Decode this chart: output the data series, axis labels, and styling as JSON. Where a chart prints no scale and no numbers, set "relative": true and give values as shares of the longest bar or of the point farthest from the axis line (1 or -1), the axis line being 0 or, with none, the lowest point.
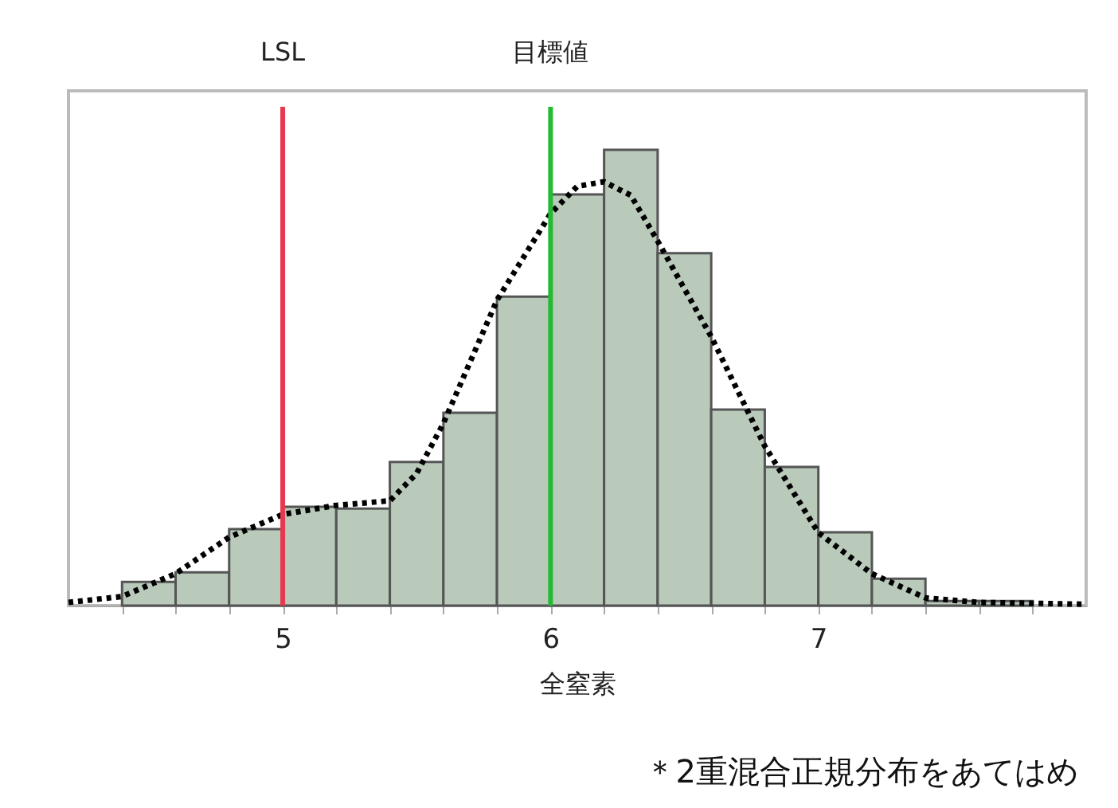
{
  "chart_data": {
    "type": "histogram",
    "relative": true,
    "xlabel": "全窒素",
    "bins": [
      4.4,
      4.6,
      4.8,
      5.0,
      5.2,
      5.4,
      5.6,
      5.8,
      6.0,
      6.2,
      6.4,
      6.6,
      6.8,
      7.0,
      7.2,
      7.4,
      7.6,
      7.8
    ],
    "values": [
      0.052,
      0.073,
      0.168,
      0.217,
      0.213,
      0.315,
      0.423,
      0.678,
      0.902,
      1.0,
      0.773,
      0.43,
      0.304,
      0.161,
      0.059,
      0.01,
      0.01
    ],
    "color": "#b9cabb",
    "series": [
      {
        "type": "line",
        "color": "#000000",
        "line_style": "dotted",
        "x": [
          4.2,
          4.4,
          4.6,
          4.8,
          5.0,
          5.2,
          5.4,
          5.5,
          5.6,
          5.8,
          6.0,
          6.1,
          6.2,
          6.3,
          6.4,
          6.6,
          6.8,
          7.0,
          7.2,
          7.4,
          7.6,
          8.0
        ],
        "values": [
          0.007,
          0.02,
          0.07,
          0.15,
          0.2,
          0.22,
          0.23,
          0.29,
          0.4,
          0.67,
          0.86,
          0.92,
          0.93,
          0.9,
          0.8,
          0.59,
          0.35,
          0.16,
          0.07,
          0.017,
          0.007,
          0.003
        ]
      }
    ],
    "xlim": [
      4.2,
      8.0
    ],
    "xticks": [
      {
        "value": 4.4,
        "label": null
      },
      {
        "value": 4.6,
        "label": null
      },
      {
        "value": 4.8,
        "label": null
      },
      5,
      {
        "value": 5.2,
        "label": null
      },
      {
        "value": 5.4,
        "label": null
      },
      {
        "value": 5.6,
        "label": null
      },
      {
        "value": 5.8,
        "label": null
      },
      6,
      {
        "value": 6.2,
        "label": null
      },
      {
        "value": 6.4,
        "label": null
      },
      {
        "value": 6.6,
        "label": null
      },
      {
        "value": 6.8,
        "label": null
      },
      7,
      {
        "value": 7.2,
        "label": null
      },
      {
        "value": 7.4,
        "label": null
      },
      {
        "value": 7.6,
        "label": null
      },
      {
        "value": 7.8,
        "label": null
      }
    ],
    "ref_lines": [
      {
        "axis": "x",
        "value": 5,
        "label": "LSL",
        "color": "#e8384f"
      },
      {
        "axis": "x",
        "value": 6,
        "label": "目標値",
        "color": "#22bb33"
      }
    ],
    "annotations": [
      "＊2重混合正規分布をあてはめ"
    ],
    "grid": false
  }
}
